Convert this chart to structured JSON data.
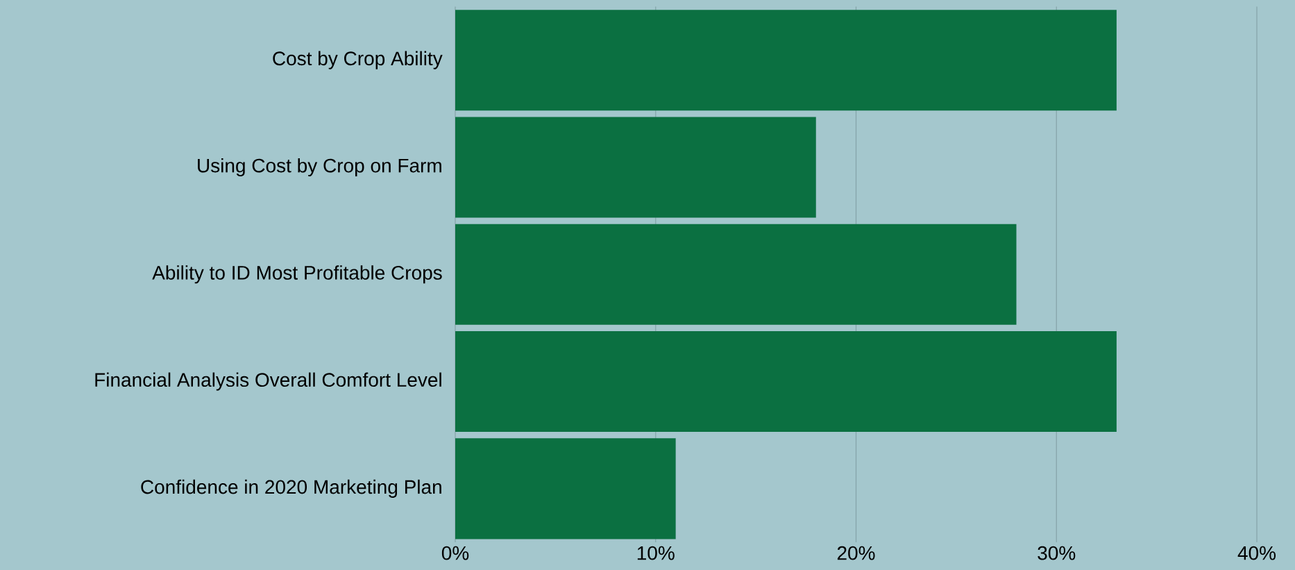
{
  "chart_data": {
    "type": "bar",
    "orientation": "horizontal",
    "categories": [
      "Cost by Crop Ability",
      "Using Cost by Crop on Farm",
      "Ability to ID Most Profitable Crops",
      "Financial Analysis Overall Comfort Level",
      "Confidence in 2020 Marketing Plan"
    ],
    "values": [
      33,
      18,
      28,
      33,
      11
    ],
    "color": "#0b7041",
    "xlim": [
      0,
      40
    ],
    "xticks": [
      {
        "value": 0,
        "label": "0%"
      },
      {
        "value": 10,
        "label": "10%"
      },
      {
        "value": 20,
        "label": "20%"
      },
      {
        "value": 30,
        "label": "30%"
      },
      {
        "value": 40,
        "label": "40%"
      }
    ],
    "grid": "x"
  }
}
